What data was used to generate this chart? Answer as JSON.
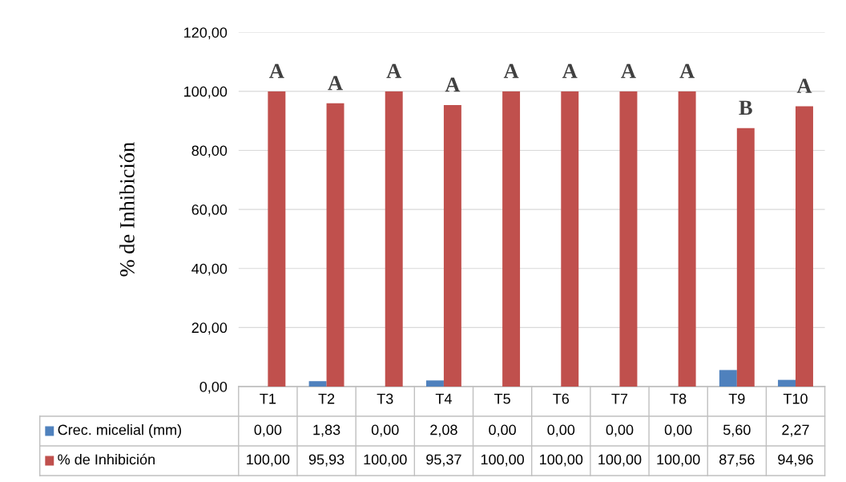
{
  "chart_data": {
    "type": "bar",
    "ylabel": "% de Inhibición",
    "categories": [
      "T1",
      "T2",
      "T3",
      "T4",
      "T5",
      "T6",
      "T7",
      "T8",
      "T9",
      "T10"
    ],
    "series": [
      {
        "name": "Crec. micelial (mm)",
        "color": "#4f81bd",
        "values": [
          0,
          1.83,
          0,
          2.08,
          0,
          0,
          0,
          0,
          5.6,
          2.27
        ],
        "value_labels": [
          "0,00",
          "1,83",
          "0,00",
          "2,08",
          "0,00",
          "0,00",
          "0,00",
          "0,00",
          "5,60",
          "2,27"
        ]
      },
      {
        "name": "% de Inhibición",
        "color": "#c0504d",
        "values": [
          100,
          95.93,
          100,
          95.37,
          100,
          100,
          100,
          100,
          87.56,
          94.96
        ],
        "value_labels": [
          "100,00",
          "95,93",
          "100,00",
          "95,37",
          "100,00",
          "100,00",
          "100,00",
          "100,00",
          "87,56",
          "94,96"
        ]
      }
    ],
    "ylim": [
      0,
      120
    ],
    "yticks": [
      {
        "value": 0,
        "label": "0,00"
      },
      {
        "value": 20,
        "label": "20,00"
      },
      {
        "value": 40,
        "label": "40,00"
      },
      {
        "value": 60,
        "label": "60,00"
      },
      {
        "value": 80,
        "label": "80,00"
      },
      {
        "value": 100,
        "label": "100,00"
      },
      {
        "value": 120,
        "label": "120,00"
      }
    ],
    "grid": "y",
    "legend": "bottom",
    "annotations": [
      {
        "text": "A",
        "x": "T1",
        "y": 100
      },
      {
        "text": "A",
        "x": "T2",
        "y": 95.93
      },
      {
        "text": "A",
        "x": "T3",
        "y": 100
      },
      {
        "text": "A",
        "x": "T4",
        "y": 95.37
      },
      {
        "text": "A",
        "x": "T5",
        "y": 100
      },
      {
        "text": "A",
        "x": "T6",
        "y": 100
      },
      {
        "text": "A",
        "x": "T7",
        "y": 100
      },
      {
        "text": "A",
        "x": "T8",
        "y": 100
      },
      {
        "text": "B",
        "x": "T9",
        "y": 87.56
      },
      {
        "text": "A",
        "x": "T10",
        "y": 94.96
      }
    ]
  }
}
